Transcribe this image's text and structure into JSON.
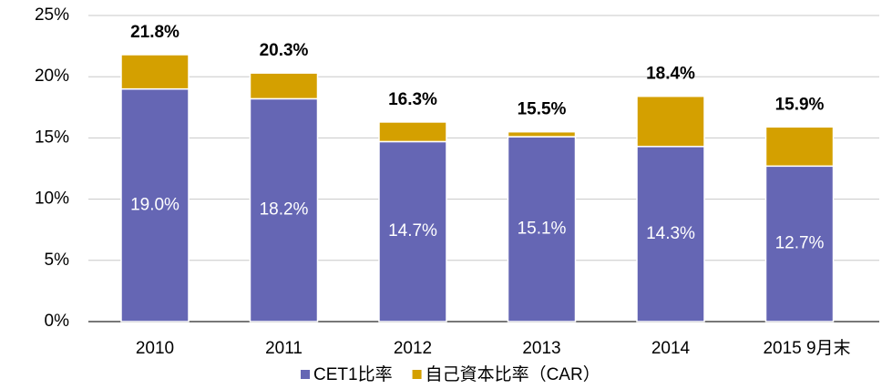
{
  "chart_data": {
    "type": "stacked_bar",
    "categories": [
      "2010",
      "2011",
      "2012",
      "2013",
      "2014",
      "2015 9月末"
    ],
    "series": [
      {
        "name": "CET1比率",
        "color": "#6566b4",
        "values": [
          19.0,
          18.2,
          14.7,
          15.1,
          14.3,
          12.7
        ],
        "value_labels": [
          "19.0%",
          "18.2%",
          "14.7%",
          "15.1%",
          "14.3%",
          "12.7%"
        ]
      },
      {
        "name": "自己資本比率（CAR）",
        "color": "#d4a000",
        "values": [
          2.8,
          2.1,
          1.6,
          0.4,
          4.1,
          3.2
        ]
      }
    ],
    "totals": [
      21.8,
      20.3,
      16.3,
      15.5,
      18.4,
      15.9
    ],
    "total_labels": [
      "21.8%",
      "20.3%",
      "16.3%",
      "15.5%",
      "18.4%",
      "15.9%"
    ],
    "ylim": [
      0,
      25
    ],
    "yticks": [
      {
        "value": 0,
        "label": "0%"
      },
      {
        "value": 5,
        "label": "5%"
      },
      {
        "value": 10,
        "label": "10%"
      },
      {
        "value": 15,
        "label": "15%"
      },
      {
        "value": 20,
        "label": "20%"
      },
      {
        "value": 25,
        "label": "25%"
      }
    ],
    "grid": true,
    "legend": "bottom"
  }
}
